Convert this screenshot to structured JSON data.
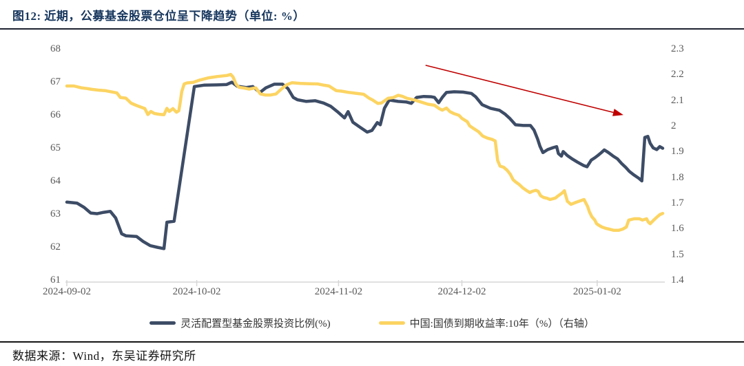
{
  "title": "图12:  近期，公募基金股票仓位呈下降趋势（单位: %）",
  "footer": {
    "source_label": "数据来源：Wind，东吴证券研究所"
  },
  "colors": {
    "title_navy": "#17375E",
    "series_dark": "#3D4C66",
    "series_yellow": "#FCD462",
    "axis_text": "#595959",
    "axis_line": "#D6D6D6",
    "arrow_red": "#C00000"
  },
  "chart_data": {
    "type": "line",
    "title": "近期，公募基金股票仓位呈下降趋势（单位: %）",
    "xlabel": "",
    "ylabel_left": "灵活配置型基金股票投资比例(%)",
    "ylabel_right": "中国:国债到期收益率:10年（%）",
    "grid": false,
    "legend_position": "bottom",
    "x_axis": {
      "type": "date",
      "ticks": [
        {
          "label": "2024-09-02",
          "t": 0.0
        },
        {
          "label": "2024-10-02",
          "t": 0.218
        },
        {
          "label": "2024-11-02",
          "t": 0.456
        },
        {
          "label": "2024-12-02",
          "t": 0.663
        },
        {
          "label": "2025-01-02",
          "t": 0.89
        }
      ]
    },
    "left_axis": {
      "min": 61,
      "max": 68,
      "ticks": [
        68,
        67,
        66,
        65,
        64,
        63,
        62,
        61
      ]
    },
    "right_axis": {
      "min": 1.4,
      "max": 2.3,
      "ticks": [
        2.3,
        2.2,
        2.1,
        2,
        1.9,
        1.8,
        1.7,
        1.6,
        1.5,
        1.4
      ]
    },
    "annotation": {
      "type": "arrow",
      "color": "#C00000",
      "from": [
        0.602,
        0.068
      ],
      "to": [
        0.934,
        0.283
      ]
    },
    "series": [
      {
        "name": "灵活配置型基金股票投资比例(%)",
        "axis": "left",
        "color": "#3D4C66",
        "points": [
          [
            0.0,
            63.38
          ],
          [
            0.017,
            63.35
          ],
          [
            0.029,
            63.22
          ],
          [
            0.04,
            63.05
          ],
          [
            0.051,
            63.03
          ],
          [
            0.062,
            63.07
          ],
          [
            0.073,
            63.1
          ],
          [
            0.082,
            62.9
          ],
          [
            0.092,
            62.42
          ],
          [
            0.099,
            62.36
          ],
          [
            0.117,
            62.34
          ],
          [
            0.128,
            62.19
          ],
          [
            0.14,
            62.06
          ],
          [
            0.152,
            62.01
          ],
          [
            0.163,
            61.97
          ],
          [
            0.168,
            62.77
          ],
          [
            0.18,
            62.8
          ],
          [
            0.214,
            66.88
          ],
          [
            0.23,
            66.92
          ],
          [
            0.252,
            66.93
          ],
          [
            0.268,
            66.94
          ],
          [
            0.277,
            67.01
          ],
          [
            0.286,
            66.89
          ],
          [
            0.301,
            66.85
          ],
          [
            0.312,
            66.88
          ],
          [
            0.324,
            66.7
          ],
          [
            0.334,
            66.84
          ],
          [
            0.348,
            66.95
          ],
          [
            0.362,
            66.95
          ],
          [
            0.371,
            66.82
          ],
          [
            0.38,
            66.55
          ],
          [
            0.387,
            66.48
          ],
          [
            0.402,
            66.43
          ],
          [
            0.417,
            66.45
          ],
          [
            0.431,
            66.38
          ],
          [
            0.443,
            66.28
          ],
          [
            0.454,
            66.12
          ],
          [
            0.466,
            65.93
          ],
          [
            0.472,
            66.12
          ],
          [
            0.48,
            65.8
          ],
          [
            0.491,
            65.66
          ],
          [
            0.504,
            65.5
          ],
          [
            0.512,
            65.55
          ],
          [
            0.521,
            65.79
          ],
          [
            0.526,
            65.72
          ],
          [
            0.533,
            66.22
          ],
          [
            0.541,
            66.47
          ],
          [
            0.556,
            66.43
          ],
          [
            0.57,
            66.41
          ],
          [
            0.578,
            66.37
          ],
          [
            0.587,
            66.55
          ],
          [
            0.599,
            66.58
          ],
          [
            0.611,
            66.57
          ],
          [
            0.617,
            66.55
          ],
          [
            0.624,
            66.39
          ],
          [
            0.63,
            66.55
          ],
          [
            0.637,
            66.7
          ],
          [
            0.65,
            66.72
          ],
          [
            0.665,
            66.71
          ],
          [
            0.679,
            66.67
          ],
          [
            0.686,
            66.57
          ],
          [
            0.697,
            66.33
          ],
          [
            0.711,
            66.22
          ],
          [
            0.726,
            66.16
          ],
          [
            0.735,
            66.05
          ],
          [
            0.743,
            65.92
          ],
          [
            0.753,
            65.72
          ],
          [
            0.766,
            65.7
          ],
          [
            0.778,
            65.7
          ],
          [
            0.784,
            65.56
          ],
          [
            0.79,
            65.29
          ],
          [
            0.794,
            65.07
          ],
          [
            0.799,
            64.88
          ],
          [
            0.807,
            64.97
          ],
          [
            0.816,
            65.03
          ],
          [
            0.822,
            65.06
          ],
          [
            0.825,
            64.85
          ],
          [
            0.83,
            64.77
          ],
          [
            0.833,
            64.91
          ],
          [
            0.84,
            64.79
          ],
          [
            0.847,
            64.7
          ],
          [
            0.857,
            64.59
          ],
          [
            0.867,
            64.49
          ],
          [
            0.873,
            64.45
          ],
          [
            0.88,
            64.65
          ],
          [
            0.886,
            64.72
          ],
          [
            0.891,
            64.79
          ],
          [
            0.897,
            64.88
          ],
          [
            0.902,
            64.96
          ],
          [
            0.909,
            64.88
          ],
          [
            0.917,
            64.77
          ],
          [
            0.924,
            64.69
          ],
          [
            0.931,
            64.55
          ],
          [
            0.938,
            64.43
          ],
          [
            0.944,
            64.31
          ],
          [
            0.951,
            64.21
          ],
          [
            0.96,
            64.1
          ],
          [
            0.965,
            64.02
          ],
          [
            0.97,
            65.34
          ],
          [
            0.975,
            65.37
          ],
          [
            0.979,
            65.16
          ],
          [
            0.984,
            65.02
          ],
          [
            0.99,
            64.97
          ],
          [
            0.995,
            65.06
          ],
          [
            1.0,
            65.01
          ]
        ]
      },
      {
        "name": "中国:国债到期收益率:10年（%）（右轴）",
        "axis": "right",
        "color": "#FCD462",
        "points": [
          [
            0.0,
            2.158
          ],
          [
            0.012,
            2.158
          ],
          [
            0.024,
            2.151
          ],
          [
            0.034,
            2.148
          ],
          [
            0.042,
            2.145
          ],
          [
            0.053,
            2.142
          ],
          [
            0.064,
            2.14
          ],
          [
            0.073,
            2.136
          ],
          [
            0.084,
            2.131
          ],
          [
            0.09,
            2.113
          ],
          [
            0.099,
            2.111
          ],
          [
            0.108,
            2.091
          ],
          [
            0.116,
            2.083
          ],
          [
            0.124,
            2.076
          ],
          [
            0.131,
            2.07
          ],
          [
            0.136,
            2.047
          ],
          [
            0.141,
            2.059
          ],
          [
            0.147,
            2.051
          ],
          [
            0.155,
            2.048
          ],
          [
            0.163,
            2.046
          ],
          [
            0.168,
            2.071
          ],
          [
            0.172,
            2.059
          ],
          [
            0.178,
            2.07
          ],
          [
            0.184,
            2.056
          ],
          [
            0.188,
            2.062
          ],
          [
            0.19,
            2.091
          ],
          [
            0.193,
            2.137
          ],
          [
            0.197,
            2.166
          ],
          [
            0.202,
            2.17
          ],
          [
            0.212,
            2.172
          ],
          [
            0.223,
            2.181
          ],
          [
            0.238,
            2.19
          ],
          [
            0.253,
            2.195
          ],
          [
            0.269,
            2.199
          ],
          [
            0.275,
            2.203
          ],
          [
            0.279,
            2.193
          ],
          [
            0.284,
            2.165
          ],
          [
            0.289,
            2.153
          ],
          [
            0.298,
            2.15
          ],
          [
            0.306,
            2.146
          ],
          [
            0.317,
            2.151
          ],
          [
            0.325,
            2.127
          ],
          [
            0.333,
            2.123
          ],
          [
            0.342,
            2.123
          ],
          [
            0.351,
            2.127
          ],
          [
            0.36,
            2.146
          ],
          [
            0.369,
            2.163
          ],
          [
            0.378,
            2.171
          ],
          [
            0.392,
            2.168
          ],
          [
            0.407,
            2.167
          ],
          [
            0.421,
            2.166
          ],
          [
            0.432,
            2.161
          ],
          [
            0.44,
            2.158
          ],
          [
            0.452,
            2.14
          ],
          [
            0.461,
            2.138
          ],
          [
            0.473,
            2.133
          ],
          [
            0.484,
            2.13
          ],
          [
            0.498,
            2.126
          ],
          [
            0.507,
            2.111
          ],
          [
            0.513,
            2.104
          ],
          [
            0.522,
            2.09
          ],
          [
            0.528,
            2.092
          ],
          [
            0.539,
            2.11
          ],
          [
            0.548,
            2.113
          ],
          [
            0.556,
            2.122
          ],
          [
            0.563,
            2.118
          ],
          [
            0.571,
            2.11
          ],
          [
            0.583,
            2.104
          ],
          [
            0.594,
            2.096
          ],
          [
            0.606,
            2.087
          ],
          [
            0.617,
            2.083
          ],
          [
            0.625,
            2.07
          ],
          [
            0.63,
            2.064
          ],
          [
            0.637,
            2.072
          ],
          [
            0.643,
            2.058
          ],
          [
            0.65,
            2.05
          ],
          [
            0.658,
            2.044
          ],
          [
            0.663,
            2.032
          ],
          [
            0.672,
            2.019
          ],
          [
            0.676,
            2.003
          ],
          [
            0.683,
            1.992
          ],
          [
            0.691,
            1.98
          ],
          [
            0.698,
            1.963
          ],
          [
            0.706,
            1.955
          ],
          [
            0.714,
            1.95
          ],
          [
            0.719,
            1.944
          ],
          [
            0.723,
            1.868
          ],
          [
            0.727,
            1.846
          ],
          [
            0.733,
            1.842
          ],
          [
            0.739,
            1.83
          ],
          [
            0.744,
            1.815
          ],
          [
            0.749,
            1.793
          ],
          [
            0.754,
            1.783
          ],
          [
            0.759,
            1.775
          ],
          [
            0.765,
            1.762
          ],
          [
            0.771,
            1.752
          ],
          [
            0.777,
            1.743
          ],
          [
            0.781,
            1.748
          ],
          [
            0.787,
            1.752
          ],
          [
            0.791,
            1.748
          ],
          [
            0.795,
            1.731
          ],
          [
            0.8,
            1.724
          ],
          [
            0.806,
            1.721
          ],
          [
            0.811,
            1.716
          ],
          [
            0.82,
            1.722
          ],
          [
            0.825,
            1.731
          ],
          [
            0.831,
            1.741
          ],
          [
            0.835,
            1.75
          ],
          [
            0.84,
            1.709
          ],
          [
            0.846,
            1.697
          ],
          [
            0.852,
            1.703
          ],
          [
            0.858,
            1.708
          ],
          [
            0.863,
            1.712
          ],
          [
            0.868,
            1.716
          ],
          [
            0.874,
            1.689
          ],
          [
            0.877,
            1.668
          ],
          [
            0.881,
            1.649
          ],
          [
            0.886,
            1.636
          ],
          [
            0.889,
            1.622
          ],
          [
            0.892,
            1.617
          ],
          [
            0.898,
            1.609
          ],
          [
            0.904,
            1.604
          ],
          [
            0.91,
            1.601
          ],
          [
            0.918,
            1.596
          ],
          [
            0.926,
            1.596
          ],
          [
            0.933,
            1.601
          ],
          [
            0.939,
            1.609
          ],
          [
            0.943,
            1.636
          ],
          [
            0.952,
            1.641
          ],
          [
            0.961,
            1.641
          ],
          [
            0.966,
            1.636
          ],
          [
            0.973,
            1.641
          ],
          [
            0.976,
            1.628
          ],
          [
            0.979,
            1.622
          ],
          [
            0.985,
            1.636
          ],
          [
            0.991,
            1.649
          ],
          [
            0.995,
            1.657
          ],
          [
            1.0,
            1.662
          ]
        ]
      }
    ]
  }
}
